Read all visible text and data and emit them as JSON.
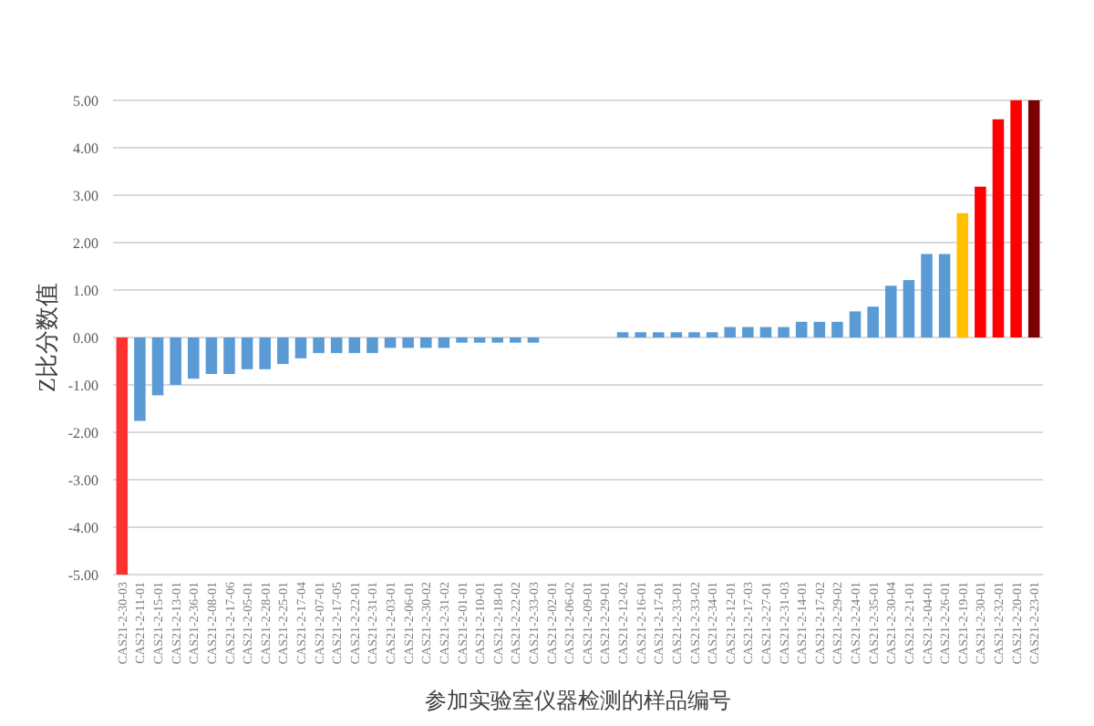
{
  "chart_data": {
    "type": "bar",
    "ylabel": "Z比分数值",
    "xlabel": "参加实验室仪器检测的样品编号",
    "categories": [
      "CAS21-2-30-03",
      "CAS21-2-11-01",
      "CAS21-2-15-01",
      "CAS21-2-13-01",
      "CAS21-2-36-01",
      "CAS21-2-08-01",
      "CAS21-2-17-06",
      "CAS21-2-05-01",
      "CAS21-2-28-01",
      "CAS21-2-25-01",
      "CAS21-2-17-04",
      "CAS21-2-07-01",
      "CAS21-2-17-05",
      "CAS21-2-22-01",
      "CAS21-2-31-01",
      "CAS21-2-03-01",
      "CAS21-2-06-01",
      "CAS21-2-30-02",
      "CAS21-2-31-02",
      "CAS21-2-01-01",
      "CAS21-2-10-01",
      "CAS21-2-18-01",
      "CAS21-2-22-02",
      "CAS21-2-33-03",
      "CAS21-2-02-01",
      "CAS21-2-06-02",
      "CAS21-2-09-01",
      "CAS21-2-29-01",
      "CAS21-2-12-02",
      "CAS21-2-16-01",
      "CAS21-2-17-01",
      "CAS21-2-33-01",
      "CAS21-2-33-02",
      "CAS21-2-34-01",
      "CAS21-2-12-01",
      "CAS21-2-17-03",
      "CAS21-2-27-01",
      "CAS21-2-31-03",
      "CAS21-2-14-01",
      "CAS21-2-17-02",
      "CAS21-2-29-02",
      "CAS21-2-24-01",
      "CAS21-2-35-01",
      "CAS21-2-30-04",
      "CAS21-2-21-01",
      "CAS21-2-04-01",
      "CAS21-2-26-01",
      "CAS21-2-19-01",
      "CAS21-2-30-01",
      "CAS21-2-32-01",
      "CAS21-2-20-01",
      "CAS21-2-23-01"
    ],
    "values": [
      -5.0,
      -1.76,
      -1.22,
      -1.0,
      -0.87,
      -0.77,
      -0.77,
      -0.67,
      -0.67,
      -0.56,
      -0.44,
      -0.33,
      -0.33,
      -0.33,
      -0.33,
      -0.22,
      -0.22,
      -0.22,
      -0.22,
      -0.11,
      -0.11,
      -0.11,
      -0.11,
      -0.11,
      0,
      0,
      0,
      0,
      0.11,
      0.11,
      0.11,
      0.11,
      0.11,
      0.11,
      0.22,
      0.22,
      0.22,
      0.22,
      0.33,
      0.33,
      0.33,
      0.55,
      0.65,
      1.09,
      1.21,
      1.76,
      1.76,
      2.62,
      3.18,
      4.6,
      5.0,
      5.0
    ],
    "colors": [
      "#ff3030",
      "#5b9bd5",
      "#5b9bd5",
      "#5b9bd5",
      "#5b9bd5",
      "#5b9bd5",
      "#5b9bd5",
      "#5b9bd5",
      "#5b9bd5",
      "#5b9bd5",
      "#5b9bd5",
      "#5b9bd5",
      "#5b9bd5",
      "#5b9bd5",
      "#5b9bd5",
      "#5b9bd5",
      "#5b9bd5",
      "#5b9bd5",
      "#5b9bd5",
      "#5b9bd5",
      "#5b9bd5",
      "#5b9bd5",
      "#5b9bd5",
      "#5b9bd5",
      "#5b9bd5",
      "#5b9bd5",
      "#5b9bd5",
      "#5b9bd5",
      "#5b9bd5",
      "#5b9bd5",
      "#5b9bd5",
      "#5b9bd5",
      "#5b9bd5",
      "#5b9bd5",
      "#5b9bd5",
      "#5b9bd5",
      "#5b9bd5",
      "#5b9bd5",
      "#5b9bd5",
      "#5b9bd5",
      "#5b9bd5",
      "#5b9bd5",
      "#5b9bd5",
      "#5b9bd5",
      "#5b9bd5",
      "#5b9bd5",
      "#5b9bd5",
      "#ffc000",
      "#ff0000",
      "#ff0000",
      "#ff0000",
      "#7b0000"
    ],
    "ylim": [
      -5,
      5
    ],
    "yticks": [
      {
        "value": 5,
        "label": "5.00"
      },
      {
        "value": 4,
        "label": "4.00"
      },
      {
        "value": 3,
        "label": "3.00"
      },
      {
        "value": 2,
        "label": "2.00"
      },
      {
        "value": 1,
        "label": "1.00"
      },
      {
        "value": 0,
        "label": "0.00"
      },
      {
        "value": -1,
        "label": "-1.00"
      },
      {
        "value": -2,
        "label": "-2.00"
      },
      {
        "value": -3,
        "label": "-3.00"
      },
      {
        "value": -4,
        "label": "-4.00"
      },
      {
        "value": -5,
        "label": "-5.00"
      }
    ],
    "grid": "y"
  }
}
